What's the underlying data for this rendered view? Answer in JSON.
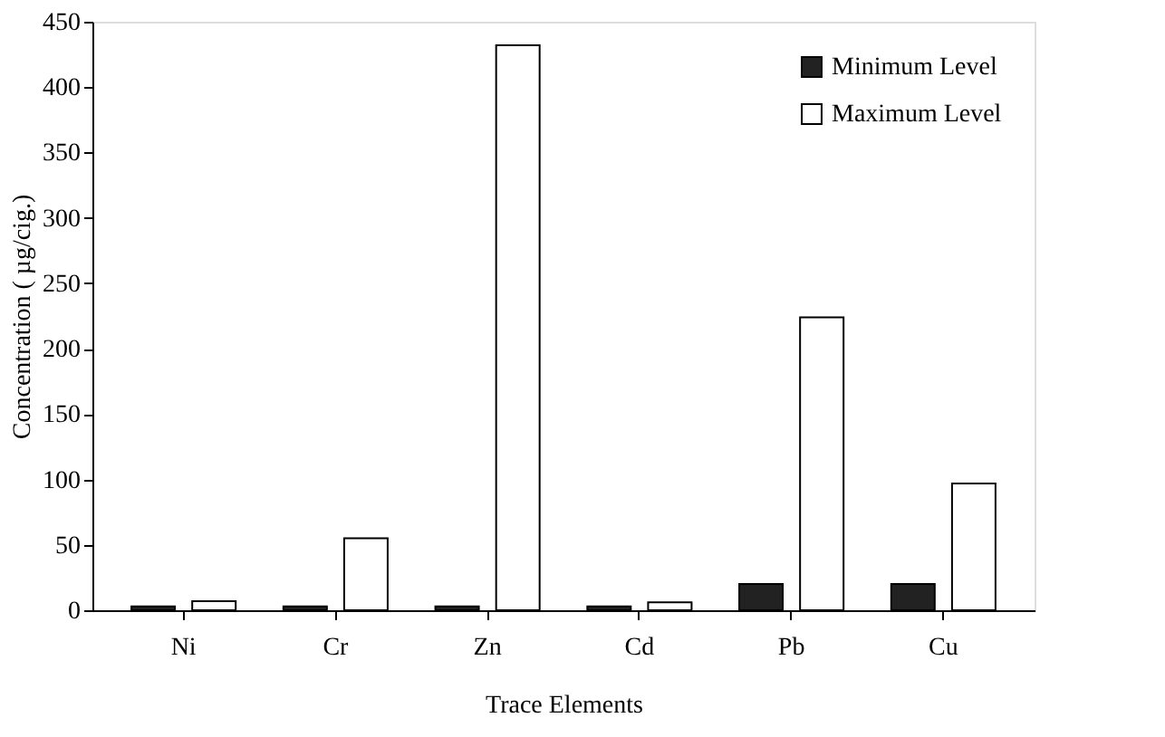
{
  "chart_data": {
    "type": "bar",
    "xlabel": "Trace Elements",
    "ylabel": "Concentration ( µg/cig.)",
    "categories": [
      "Ni",
      "Cr",
      "Zn",
      "Cd",
      "Pb",
      "Cu"
    ],
    "series": [
      {
        "name": "Minimum Level",
        "color": "#222222",
        "values": [
          3,
          3,
          3,
          3,
          20,
          20
        ]
      },
      {
        "name": "Maximum Level",
        "color": "#ffffff",
        "values": [
          7,
          55,
          432,
          6,
          224,
          97
        ]
      }
    ],
    "ylim": [
      0,
      450
    ],
    "yticks": [
      0,
      50,
      100,
      150,
      200,
      250,
      300,
      350,
      400,
      450
    ],
    "grid": false,
    "legend": "top right"
  }
}
